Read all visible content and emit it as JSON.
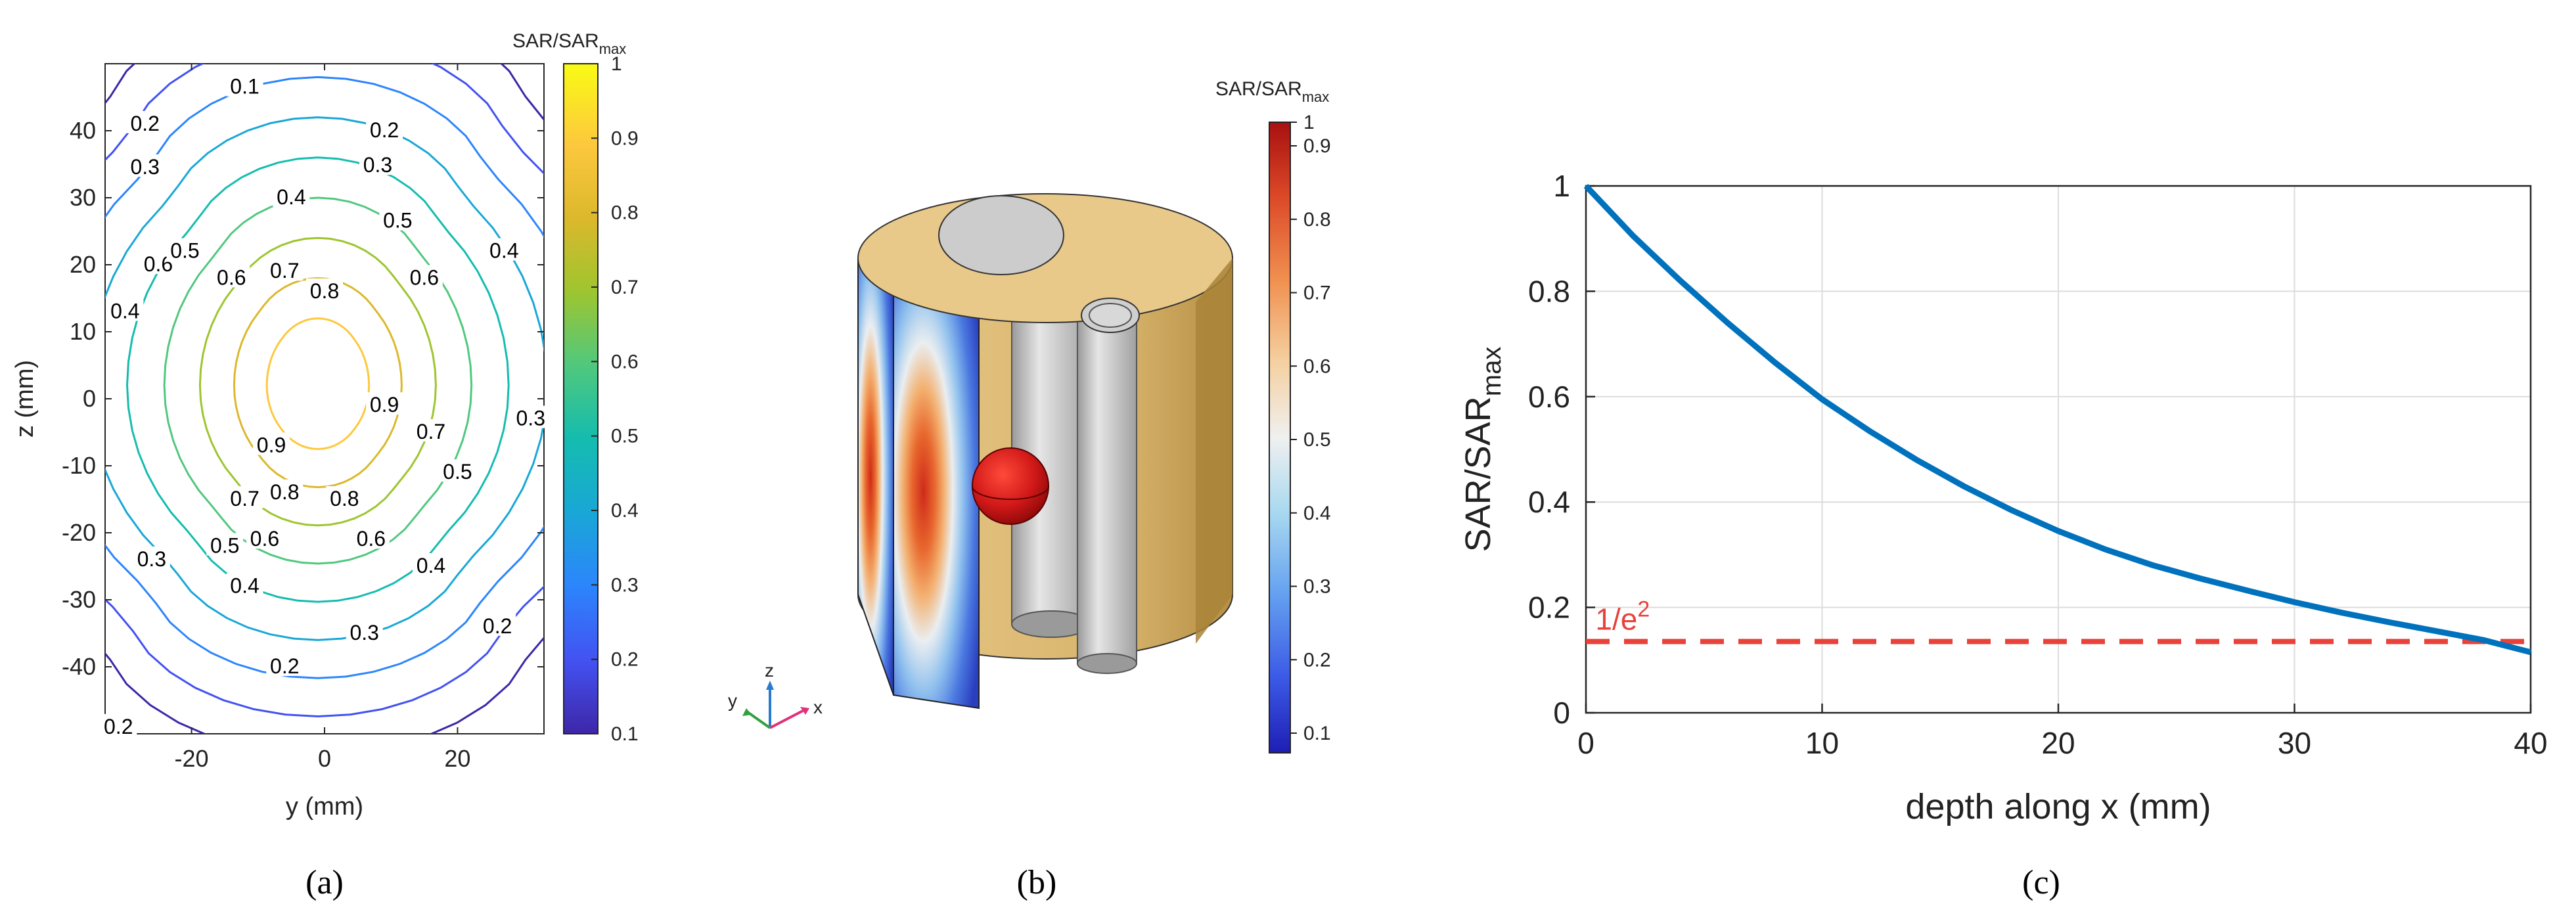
{
  "chart_data": [
    {
      "panel": "(a)",
      "type": "contour",
      "xlabel": "y (mm)",
      "ylabel": "z (mm)",
      "xlim": [
        -33,
        33
      ],
      "ylim": [
        -50,
        50
      ],
      "xticks": [
        -20,
        0,
        20
      ],
      "yticks": [
        -40,
        -30,
        -20,
        -10,
        0,
        10,
        20,
        30,
        40
      ],
      "colorbar_title": "SAR/SAR",
      "colorbar_sub": "max",
      "colorbar_ticks": [
        "1",
        "0.9",
        "0.8",
        "0.7",
        "0.6",
        "0.5",
        "0.4",
        "0.3",
        "0.2",
        "0.1"
      ],
      "colormap": [
        "#3e26a8",
        "#4352f2",
        "#2c85fc",
        "#19a7d6",
        "#14bcaf",
        "#50c87d",
        "#9ec52f",
        "#dcb82c",
        "#fdc83d",
        "#f9fb15"
      ],
      "levels": [
        0.1,
        0.2,
        0.3,
        0.4,
        0.5,
        0.6,
        0.7,
        0.8,
        0.9
      ],
      "contour_labels": [
        {
          "text": "0.1",
          "y": -12,
          "z": 46.5
        },
        {
          "text": "0.2",
          "y": -27,
          "z": 41
        },
        {
          "text": "0.2",
          "y": 9,
          "z": 40
        },
        {
          "text": "0.3",
          "y": -27,
          "z": 34.5
        },
        {
          "text": "0.3",
          "y": 8,
          "z": 34.8
        },
        {
          "text": "0.4",
          "y": -5,
          "z": 30
        },
        {
          "text": "0.5",
          "y": 11,
          "z": 26.5
        },
        {
          "text": "0.6",
          "y": -25,
          "z": 20
        },
        {
          "text": "0.5",
          "y": -21,
          "z": 22
        },
        {
          "text": "0.6",
          "y": -14,
          "z": 18
        },
        {
          "text": "0.7",
          "y": -6,
          "z": 19
        },
        {
          "text": "0.6",
          "y": 15,
          "z": 18
        },
        {
          "text": "0.4",
          "y": 27,
          "z": 22
        },
        {
          "text": "0.8",
          "y": 0,
          "z": 16
        },
        {
          "text": "0.4",
          "y": -30,
          "z": 13
        },
        {
          "text": "0.9",
          "y": 9,
          "z": -1
        },
        {
          "text": "0.7",
          "y": 16,
          "z": -5
        },
        {
          "text": "0.3",
          "y": 31,
          "z": -3
        },
        {
          "text": "0.5",
          "y": 20,
          "z": -11
        },
        {
          "text": "0.9",
          "y": -8,
          "z": -7
        },
        {
          "text": "0.8",
          "y": -6,
          "z": -14
        },
        {
          "text": "0.8",
          "y": 3,
          "z": -15
        },
        {
          "text": "0.7",
          "y": -12,
          "z": -15
        },
        {
          "text": "0.6",
          "y": -9,
          "z": -21
        },
        {
          "text": "0.6",
          "y": 7,
          "z": -21
        },
        {
          "text": "0.5",
          "y": -15,
          "z": -22
        },
        {
          "text": "0.4",
          "y": 16,
          "z": -25
        },
        {
          "text": "0.4",
          "y": -12,
          "z": -28
        },
        {
          "text": "0.3",
          "y": -26,
          "z": -24
        },
        {
          "text": "0.3",
          "y": 6,
          "z": -35
        },
        {
          "text": "0.2",
          "y": 26,
          "z": -34
        },
        {
          "text": "0.2",
          "y": -6,
          "z": -40
        },
        {
          "text": "0.2",
          "y": -31,
          "z": -49
        }
      ]
    },
    {
      "panel": "(b)",
      "type": "3d-render",
      "colorbar_title": "SAR/SAR",
      "colorbar_sub": "max",
      "colorbar_ticks": [
        "1",
        "0.9",
        "0.8",
        "0.7",
        "0.6",
        "0.5",
        "0.4",
        "0.3",
        "0.2",
        "0.1"
      ],
      "axes_labels": {
        "x": "x",
        "y": "y",
        "z": "z"
      },
      "colors": {
        "cylinder": "#e8c98a",
        "cylinder_side": "#c9a35a",
        "hole": "#cfcfcf",
        "sphere": "#d01818"
      }
    },
    {
      "panel": "(c)",
      "type": "line",
      "xlabel": "depth along x (mm)",
      "ylabel": "SAR/SAR",
      "ylabel_sub": "max",
      "xlim": [
        0,
        40
      ],
      "ylim": [
        0,
        1
      ],
      "xticks": [
        0,
        10,
        20,
        30,
        40
      ],
      "yticks": [
        0,
        0.2,
        0.4,
        0.6,
        0.8,
        1
      ],
      "grid": true,
      "series": [
        {
          "name": "SAR",
          "color": "#0072bd",
          "x": [
            0,
            2,
            4,
            6,
            8,
            10,
            12,
            14,
            16,
            18,
            20,
            22,
            24,
            26,
            28,
            30,
            32,
            34,
            36,
            38,
            40
          ],
          "y": [
            1.0,
            0.905,
            0.82,
            0.74,
            0.665,
            0.595,
            0.535,
            0.48,
            0.43,
            0.385,
            0.345,
            0.31,
            0.28,
            0.255,
            0.232,
            0.21,
            0.19,
            0.172,
            0.155,
            0.138,
            0.115
          ]
        }
      ],
      "threshold": {
        "value": 0.1353,
        "label": "1/e",
        "label_sup": "2",
        "color": "#e8423a"
      }
    }
  ],
  "panel_labels": {
    "a": "(a)",
    "b": "(b)",
    "c": "(c)"
  }
}
